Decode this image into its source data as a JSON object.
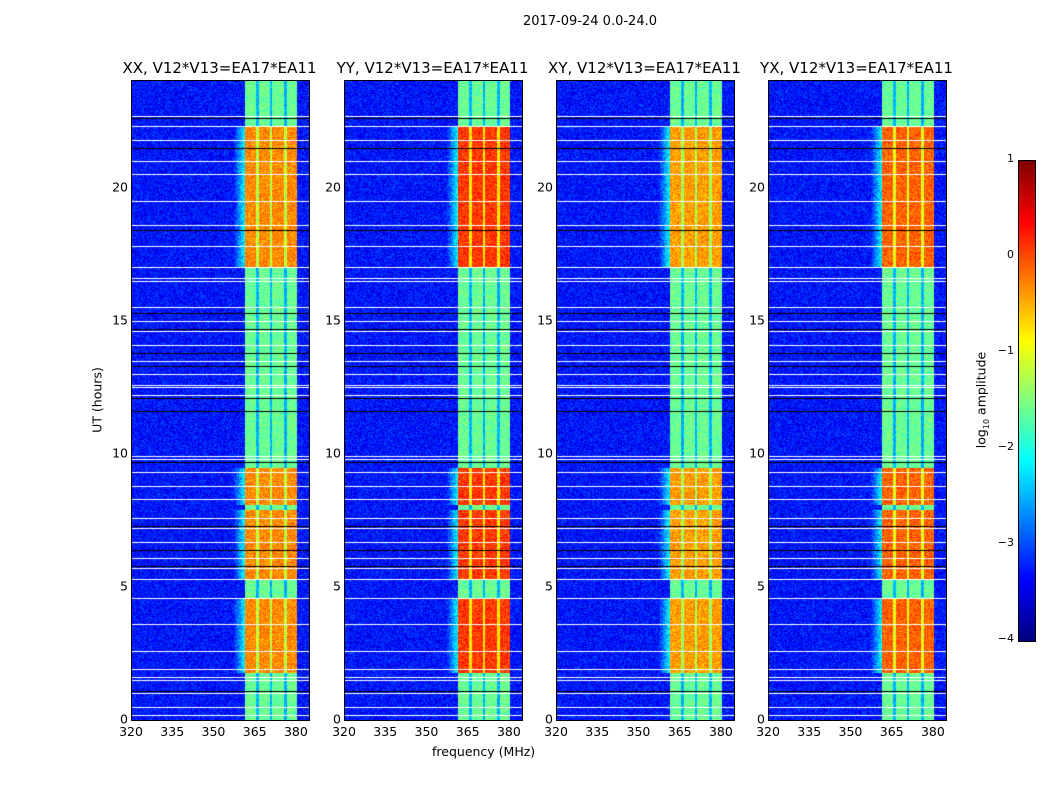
{
  "chart_data": {
    "type": "heatmap",
    "title": "2017-09-24 0.0-24.0",
    "xlabel": "frequency (MHz)",
    "ylabel": "UT (hours)",
    "xlim": [
      320,
      384.4
    ],
    "ylim": [
      0,
      24
    ],
    "xticks": [
      "320",
      "335",
      "350",
      "365",
      "380"
    ],
    "xtick_values": [
      320,
      335,
      350,
      365,
      380
    ],
    "yticks": [
      "0",
      "5",
      "10",
      "15",
      "20"
    ],
    "ytick_values": [
      0,
      5,
      10,
      15,
      20
    ],
    "panels": [
      {
        "title": "XX, V12*V13=EA17*EA11",
        "high_level": -0.3
      },
      {
        "title": "YY, V12*V13=EA17*EA11",
        "high_level": 0.1
      },
      {
        "title": "XY, V12*V13=EA17*EA11",
        "high_level": -0.4
      },
      {
        "title": "YX, V12*V13=EA17*EA11",
        "high_level": -0.1
      }
    ],
    "band_mhz": [
      361,
      380
    ],
    "subband_edges_mhz": [
      365.5,
      370.5,
      375.6
    ],
    "background_log_amp": -3.3,
    "band_log_amp": -1.6,
    "high_intervals_hours": [
      [
        1.8,
        4.6
      ],
      [
        5.3,
        7.9
      ],
      [
        8.1,
        9.5
      ],
      [
        17.0,
        22.3
      ]
    ],
    "flagged_hours": [
      0.2,
      0.5,
      1.0,
      1.5,
      1.6,
      1.9,
      2.6,
      3.6,
      4.6,
      5.3,
      5.7,
      6.1,
      6.7,
      7.2,
      7.6,
      8.3,
      8.8,
      9.3,
      9.8,
      9.9,
      12.2,
      12.5,
      12.6,
      13.0,
      13.5,
      14.1,
      14.6,
      15.0,
      15.5,
      16.5,
      16.6,
      17.0,
      17.8,
      18.6,
      19.5,
      20.5,
      21.0,
      21.8,
      22.3,
      22.7
    ],
    "black_hours": [
      1.1,
      5.8,
      6.4,
      7.3,
      9.7,
      11.6,
      12.1,
      13.3,
      13.8,
      14.7,
      15.3,
      18.4,
      21.5,
      22.6
    ],
    "colorbar": {
      "label": "log10 amplitude",
      "label_main": "log",
      "label_sub": "10",
      "label_tail": " amplitude",
      "ticks": [
        "1",
        "0",
        "−1",
        "−2",
        "−3",
        "−4"
      ],
      "range": [
        -4,
        1
      ],
      "colormap": "jet"
    }
  }
}
